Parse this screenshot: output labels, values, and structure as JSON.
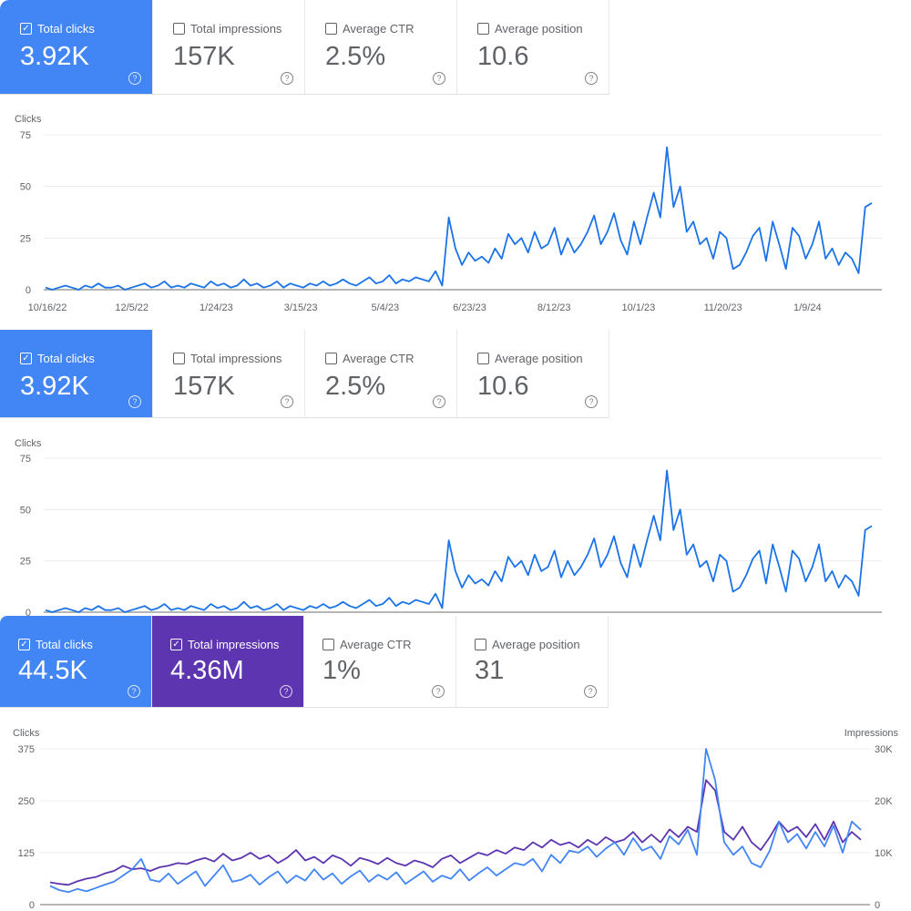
{
  "panels": [
    {
      "cards": [
        {
          "label": "Total clicks",
          "value": "3.92K",
          "checked": true,
          "color": "#4285f4"
        },
        {
          "label": "Total impressions",
          "value": "157K",
          "checked": false
        },
        {
          "label": "Average CTR",
          "value": "2.5%",
          "checked": false
        },
        {
          "label": "Average position",
          "value": "10.6",
          "checked": false
        }
      ],
      "y_axis_title": "Clicks"
    },
    {
      "cards": [
        {
          "label": "Total clicks",
          "value": "3.92K",
          "checked": true,
          "color": "#4285f4"
        },
        {
          "label": "Total impressions",
          "value": "157K",
          "checked": false
        },
        {
          "label": "Average CTR",
          "value": "2.5%",
          "checked": false
        },
        {
          "label": "Average position",
          "value": "10.6",
          "checked": false
        }
      ],
      "y_axis_title": "Clicks"
    },
    {
      "cards": [
        {
          "label": "Total clicks",
          "value": "44.5K",
          "checked": true,
          "color": "#4285f4"
        },
        {
          "label": "Total impressions",
          "value": "4.36M",
          "checked": true,
          "color": "#5e35b1"
        },
        {
          "label": "Average CTR",
          "value": "1%",
          "checked": false
        },
        {
          "label": "Average position",
          "value": "31",
          "checked": false
        }
      ],
      "y_axis_title": "Clicks",
      "y2_axis_title": "Impressions"
    }
  ],
  "chart_data": [
    {
      "type": "line",
      "ylabel": "Clicks",
      "ylim": [
        0,
        75
      ],
      "yticks": [
        "0",
        "25",
        "50",
        "75"
      ],
      "xticks": [
        "10/16/22",
        "12/5/22",
        "1/24/23",
        "3/15/23",
        "5/4/23",
        "6/23/23",
        "8/12/23",
        "10/1/23",
        "11/20/23",
        "1/9/24"
      ],
      "series": [
        {
          "name": "Clicks",
          "color": "#1a73e8",
          "values": [
            1,
            0,
            1,
            2,
            1,
            0,
            2,
            1,
            3,
            1,
            1,
            2,
            0,
            1,
            2,
            3,
            1,
            2,
            4,
            1,
            2,
            1,
            3,
            2,
            1,
            4,
            2,
            3,
            1,
            2,
            5,
            2,
            3,
            1,
            2,
            4,
            1,
            3,
            2,
            1,
            3,
            2,
            4,
            2,
            3,
            5,
            3,
            2,
            4,
            6,
            3,
            4,
            7,
            3,
            5,
            4,
            6,
            5,
            4,
            9,
            2,
            35,
            20,
            12,
            18,
            14,
            16,
            13,
            20,
            15,
            27,
            22,
            25,
            18,
            28,
            20,
            22,
            30,
            17,
            25,
            18,
            22,
            28,
            36,
            22,
            28,
            37,
            24,
            17,
            33,
            22,
            35,
            47,
            35,
            69,
            40,
            50,
            28,
            33,
            22,
            25,
            15,
            28,
            25,
            10,
            12,
            18,
            26,
            30,
            14,
            33,
            22,
            10,
            30,
            26,
            15,
            22,
            33,
            15,
            20,
            12,
            18,
            15,
            8,
            40,
            42
          ]
        }
      ]
    },
    {
      "type": "line",
      "ylabel": "Clicks",
      "ylim": [
        0,
        75
      ],
      "yticks": [
        "0",
        "25",
        "50",
        "75"
      ],
      "xticks": [],
      "series": [
        {
          "name": "Clicks",
          "color": "#1a73e8",
          "values": [
            1,
            0,
            1,
            2,
            1,
            0,
            2,
            1,
            3,
            1,
            1,
            2,
            0,
            1,
            2,
            3,
            1,
            2,
            4,
            1,
            2,
            1,
            3,
            2,
            1,
            4,
            2,
            3,
            1,
            2,
            5,
            2,
            3,
            1,
            2,
            4,
            1,
            3,
            2,
            1,
            3,
            2,
            4,
            2,
            3,
            5,
            3,
            2,
            4,
            6,
            3,
            4,
            7,
            3,
            5,
            4,
            6,
            5,
            4,
            9,
            2,
            35,
            20,
            12,
            18,
            14,
            16,
            13,
            20,
            15,
            27,
            22,
            25,
            18,
            28,
            20,
            22,
            30,
            17,
            25,
            18,
            22,
            28,
            36,
            22,
            28,
            37,
            24,
            17,
            33,
            22,
            35,
            47,
            35,
            69,
            40,
            50,
            28,
            33,
            22,
            25,
            15,
            28,
            25,
            10,
            12,
            18,
            26,
            30,
            14,
            33,
            22,
            10,
            30,
            26,
            15,
            22,
            33,
            15,
            20,
            12,
            18,
            15,
            8,
            40,
            42
          ]
        }
      ]
    },
    {
      "type": "line",
      "ylabel": "Clicks",
      "y2label": "Impressions",
      "ylim": [
        0,
        375
      ],
      "yticks": [
        "0",
        "125",
        "250",
        "375"
      ],
      "y2lim": [
        0,
        30000
      ],
      "y2ticks": [
        "0",
        "10K",
        "20K",
        "30K"
      ],
      "xticks": [],
      "series": [
        {
          "name": "Impressions",
          "axis": "right",
          "color": "#5e35b1",
          "values": [
            4300,
            4000,
            3800,
            4500,
            5000,
            5300,
            6000,
            6500,
            7500,
            6800,
            7000,
            6500,
            7200,
            7500,
            8000,
            7800,
            8500,
            9000,
            8300,
            9800,
            8500,
            9000,
            10000,
            8800,
            9500,
            8000,
            9000,
            10500,
            8500,
            9200,
            8000,
            9500,
            8800,
            7500,
            9000,
            8500,
            7800,
            9000,
            8000,
            7500,
            8500,
            8000,
            7200,
            8800,
            9500,
            8000,
            9000,
            10000,
            9500,
            10500,
            9800,
            11000,
            10500,
            12000,
            11000,
            12500,
            11500,
            12000,
            11000,
            12500,
            11500,
            13000,
            12000,
            12500,
            14000,
            12000,
            13500,
            12000,
            14500,
            13000,
            15000,
            14000,
            24000,
            22000,
            14000,
            12500,
            15000,
            12000,
            10500,
            13000,
            16000,
            14000,
            15000,
            13000,
            15500,
            12500,
            16000,
            12000,
            14000,
            12500
          ]
        },
        {
          "name": "Clicks",
          "axis": "left",
          "color": "#4285f4",
          "values": [
            45,
            35,
            30,
            38,
            32,
            40,
            48,
            55,
            70,
            85,
            110,
            60,
            55,
            75,
            50,
            65,
            80,
            45,
            70,
            95,
            55,
            60,
            72,
            48,
            66,
            80,
            52,
            70,
            58,
            85,
            60,
            75,
            50,
            68,
            82,
            55,
            72,
            60,
            78,
            50,
            65,
            80,
            55,
            70,
            62,
            85,
            58,
            75,
            90,
            70,
            85,
            100,
            95,
            110,
            80,
            120,
            100,
            130,
            125,
            140,
            115,
            135,
            150,
            120,
            160,
            130,
            140,
            110,
            165,
            145,
            180,
            120,
            375,
            300,
            150,
            120,
            140,
            100,
            90,
            130,
            200,
            150,
            170,
            135,
            175,
            140,
            190,
            125,
            200,
            180
          ]
        }
      ]
    }
  ]
}
